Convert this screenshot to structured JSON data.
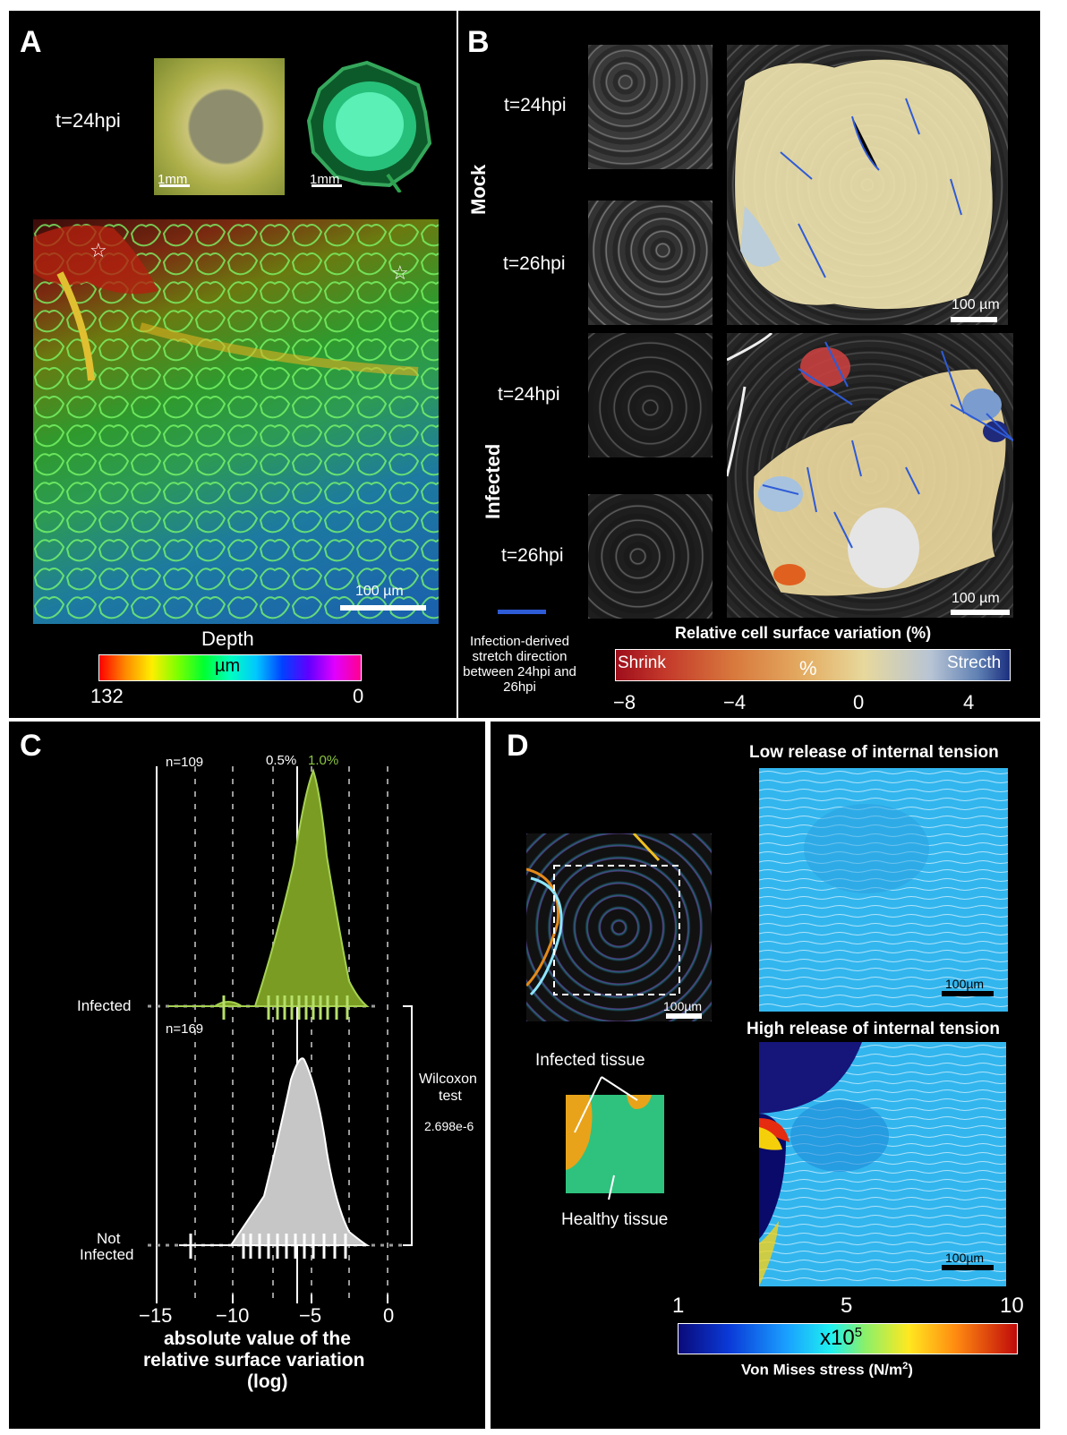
{
  "panels": {
    "A": {
      "letter": "A",
      "timepoint": "t=24hpi",
      "scale_top_left": "1mm",
      "scale_top_right": "1mm",
      "scale_main": "100 µm",
      "depth_title": "Depth",
      "depth_unit": "µm",
      "depth_min_label": "132",
      "depth_max_label": "0"
    },
    "B": {
      "letter": "B",
      "group_mock": "Mock",
      "group_infected": "Infected",
      "t1": "t=24hpi",
      "t2": "t=26hpi",
      "t3": "t=24hpi",
      "t4": "t=26hpi",
      "scale_mock": "100 µm",
      "scale_infected": "100 µm",
      "legend_line": "Infection-derived stretch direction between 24hpi and 26hpi",
      "cbar_title": "Relative cell surface variation (%)",
      "cbar_left": "Shrink",
      "cbar_mid": "%",
      "cbar_right": "Strecth",
      "cbar_ticks": [
        "−8",
        "−4",
        "0",
        "4"
      ]
    },
    "C": {
      "letter": "C",
      "n_infected": "n=109",
      "n_not_infected": "n=169",
      "pct_half": "0.5%",
      "pct_one": "1.0%",
      "row_infected": "Infected",
      "row_not_infected_1": "Not",
      "row_not_infected_2": "Infected",
      "test_name_1": "Wilcoxon",
      "test_name_2": "test",
      "p_value": "2.698e-6",
      "x_ticks": [
        "−15",
        "−10",
        "−5",
        "0"
      ],
      "xlabel_1": "absolute value of the",
      "xlabel_2": "relative surface variation",
      "xlabel_3": "(log)"
    },
    "D": {
      "letter": "D",
      "title_low": "Low release of internal tension",
      "title_high": "High release of internal tension",
      "scale_photo": "100µm",
      "scale_low": "100µm",
      "scale_high": "100µm",
      "infected_tissue": "Infected tissue",
      "healthy_tissue": "Healthy tissue",
      "cbar_ticks": [
        "1",
        "5",
        "10"
      ],
      "cbar_multiplier": "x10",
      "cbar_exponent": "5",
      "cbar_title": "Von Mises stress (N/m",
      "cbar_title_sup": "2",
      "cbar_title_end": ")"
    }
  },
  "colors": {
    "infected_green": "#8dc63f",
    "not_infected_grey": "#c8c8c8",
    "stretch_line": "#2e5bd6",
    "orange_tissue": "#e9a31a",
    "green_tissue": "#2ec27e"
  }
}
